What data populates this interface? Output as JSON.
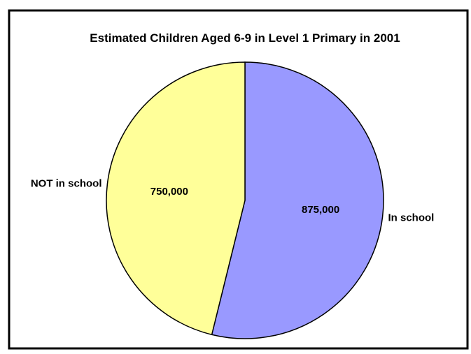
{
  "chart_data": {
    "type": "pie",
    "title": "Estimated Children Aged 6-9 in Level 1 Primary in 2001",
    "slices": [
      {
        "label": "In school",
        "value": 875000,
        "value_label": "875,000",
        "color": "#9999ff"
      },
      {
        "label": "NOT in school",
        "value": 750000,
        "value_label": "750,000",
        "color": "#ffff99"
      }
    ],
    "start_angle_deg": 0,
    "direction": "clockwise",
    "legend": "none",
    "border_color": "#000000",
    "background_color": "#ffffff"
  }
}
